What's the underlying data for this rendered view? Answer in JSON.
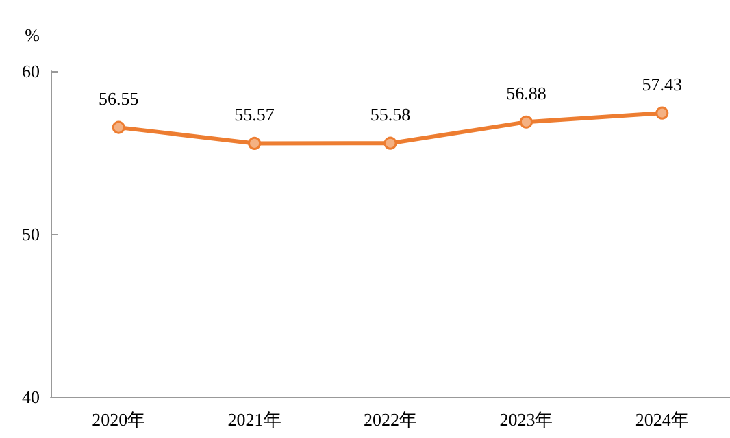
{
  "chart_data": {
    "type": "line",
    "ylabel": "%",
    "categories": [
      "2020年",
      "2021年",
      "2022年",
      "2023年",
      "2024年"
    ],
    "series": [
      {
        "color": "#ed7d31",
        "values": [
          56.55,
          55.57,
          55.58,
          56.88,
          57.43
        ]
      }
    ],
    "ylim": [
      40,
      60
    ],
    "yticks": [
      40,
      50,
      60
    ],
    "grid": false,
    "marker": "circle",
    "line_style": "solid",
    "data_labels": true
  }
}
